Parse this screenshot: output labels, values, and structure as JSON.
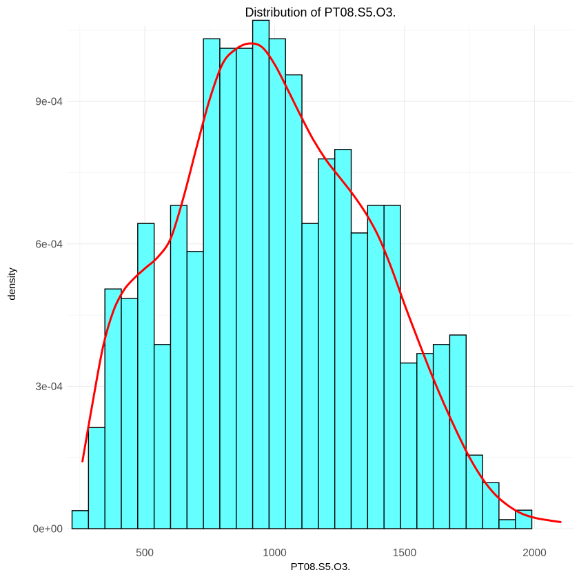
{
  "chart_data": {
    "type": "bar",
    "subtype": "histogram-with-density",
    "title": "Distribution of PT08.S5.O3.",
    "xlabel": "PT08.S5.O3.",
    "ylabel": "density",
    "xlim": [
      200,
      2150
    ],
    "ylim": [
      0,
      0.00106
    ],
    "x_ticks": [
      500,
      1000,
      1500,
      2000
    ],
    "x_tick_labels": [
      "500",
      "1000",
      "1500",
      "2000"
    ],
    "y_ticks": [
      0,
      0.0003,
      0.0006,
      0.0009
    ],
    "y_tick_labels": [
      "0e+00",
      "3e-04",
      "6e-04",
      "9e-04"
    ],
    "grid": true,
    "legend": "none",
    "bar_color": "#66FFFF",
    "bar_outline": "#000000",
    "line_color": "#FF0000",
    "bins": {
      "start": 220,
      "width": 63.2,
      "values": [
        3.8e-05,
        0.000213,
        0.000505,
        0.000485,
        0.000643,
        0.000388,
        0.000681,
        0.000584,
        0.001032,
        0.001012,
        0.001012,
        0.001071,
        0.001032,
        0.000956,
        0.000643,
        0.000779,
        0.000799,
        0.000623,
        0.000681,
        0.000681,
        0.000349,
        0.000369,
        0.000388,
        0.000408,
        0.000155,
        9.7e-05,
        1.9e-05,
        3.9e-05
      ]
    },
    "density_line": {
      "x": [
        260,
        300,
        340,
        380,
        420,
        460,
        500,
        550,
        600,
        650,
        700,
        750,
        800,
        850,
        900,
        950,
        1000,
        1050,
        1100,
        1150,
        1200,
        1250,
        1300,
        1350,
        1400,
        1450,
        1500,
        1550,
        1600,
        1650,
        1700,
        1750,
        1800,
        1850,
        1900,
        1950,
        2000,
        2050,
        2100
      ],
      "y": [
        0.000142,
        0.000268,
        0.000385,
        0.00046,
        0.000503,
        0.000528,
        0.000548,
        0.000572,
        0.000612,
        0.0007,
        0.000805,
        0.000905,
        0.00098,
        0.00101,
        0.001022,
        0.001015,
        0.000978,
        0.000925,
        0.00087,
        0.000818,
        0.000775,
        0.00074,
        0.000705,
        0.000665,
        0.000615,
        0.000548,
        0.000472,
        0.0004,
        0.00033,
        0.000265,
        0.000205,
        0.00015,
        0.000105,
        7.1e-05,
        4.8e-05,
        3.2e-05,
        2.3e-05,
        1.8e-05,
        1.4e-05
      ]
    }
  }
}
